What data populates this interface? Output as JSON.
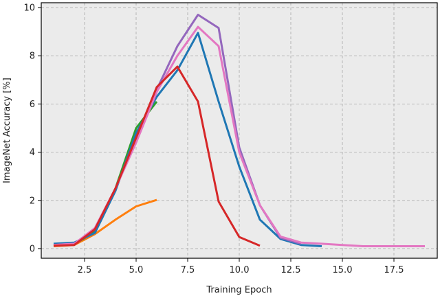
{
  "chart_data": {
    "type": "line",
    "title": "",
    "xlabel": "Training Epoch",
    "ylabel": "ImageNet Accuracy [%]",
    "xlim": [
      0.4,
      19.6
    ],
    "ylim": [
      -0.4,
      10.2
    ],
    "xticks": [
      2.5,
      5.0,
      7.5,
      10.0,
      12.5,
      15.0,
      17.5
    ],
    "xtick_labels": [
      "2.5",
      "5.0",
      "7.5",
      "10.0",
      "12.5",
      "15.0",
      "17.5"
    ],
    "yticks": [
      0,
      2,
      4,
      6,
      8,
      10
    ],
    "ytick_labels": [
      "0",
      "2",
      "4",
      "6",
      "8",
      "10"
    ],
    "grid": true,
    "legend": "none",
    "background": "#ebebeb",
    "series": [
      {
        "color": "#ff7f0e",
        "x": [
          1,
          2,
          3,
          4,
          5,
          6
        ],
        "y": [
          0.1,
          0.15,
          0.6,
          1.2,
          1.75,
          2.02
        ]
      },
      {
        "color": "#2ca02c",
        "x": [
          1,
          2,
          3,
          4,
          5,
          6
        ],
        "y": [
          0.12,
          0.18,
          0.7,
          2.5,
          5.0,
          6.1
        ]
      },
      {
        "color": "#1f77b4",
        "x": [
          1,
          2,
          3,
          4,
          5,
          6,
          7,
          8,
          9,
          10,
          11,
          12,
          13,
          14
        ],
        "y": [
          0.2,
          0.25,
          0.65,
          2.4,
          4.8,
          6.3,
          7.4,
          8.95,
          6.1,
          3.4,
          1.2,
          0.4,
          0.15,
          0.1
        ]
      },
      {
        "color": "#9467bd",
        "x": [
          1,
          2,
          3,
          4,
          5,
          6,
          7,
          8,
          9,
          10,
          11,
          12,
          13
        ],
        "y": [
          0.15,
          0.2,
          0.8,
          2.5,
          4.5,
          6.6,
          8.4,
          9.7,
          9.15,
          4.2,
          1.8,
          0.45,
          0.2
        ]
      },
      {
        "color": "#e377c2",
        "x": [
          1,
          2,
          3,
          4,
          5,
          6,
          7,
          8,
          9,
          10,
          11,
          12,
          13,
          14,
          15,
          16,
          17,
          18,
          19
        ],
        "y": [
          0.15,
          0.2,
          0.85,
          2.5,
          4.4,
          6.5,
          8.0,
          9.2,
          8.4,
          4.0,
          1.8,
          0.5,
          0.25,
          0.2,
          0.15,
          0.1,
          0.1,
          0.1,
          0.1
        ]
      },
      {
        "color": "#d62728",
        "x": [
          1,
          2,
          3,
          4,
          5,
          6,
          7,
          8,
          9,
          10,
          11
        ],
        "y": [
          0.12,
          0.15,
          0.8,
          2.5,
          4.6,
          6.7,
          7.55,
          6.1,
          1.95,
          0.48,
          0.12
        ]
      }
    ]
  }
}
